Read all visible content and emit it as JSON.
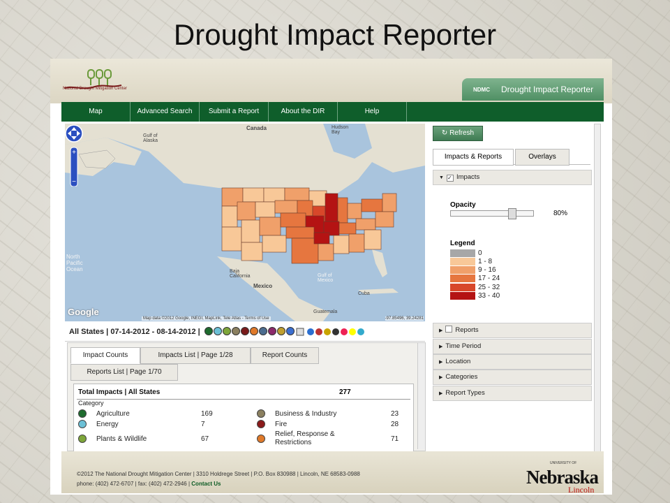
{
  "slide_title": "Drought Impact Reporter",
  "header": {
    "logo_caption": "National Drought Mitigation Center",
    "ndmc": "NDMC",
    "site_title": "Drought Impact Reporter"
  },
  "nav": [
    "Map",
    "Advanced Search",
    "Submit a Report",
    "About the DIR",
    "Help"
  ],
  "map": {
    "labels": {
      "canada": "Canada",
      "hudson": "Hudson Bay",
      "gulf_alaska": "Gulf of Alaska",
      "north_pacific": "North Pacific Ocean",
      "mexico": "Mexico",
      "gulf_mexico": "Gulf of Mexico",
      "cuba": "Cuba",
      "baja": "Baja California",
      "guatemala": "Guatemala"
    },
    "google": "Google",
    "attribution": "Map data ©2012 Google, INEGI, MapLink, Tele Atlas - Terms of Use",
    "coords": "-97.85496, 39.24281"
  },
  "filter": {
    "label": "All States | 07-14-2012 - 08-14-2012 |",
    "dot_colors": [
      "#1e6b2e",
      "#6cc0d6",
      "#7ea63a",
      "#8b8060",
      "#7a1b1b",
      "#e07a2a",
      "#4b6c8f",
      "#8b2a6a",
      "#c0a030",
      "#3b6fd0"
    ]
  },
  "lower_tabs": [
    "Impact Counts",
    "Impacts List | Page 1/28",
    "Report Counts",
    "Reports List | Page 1/70"
  ],
  "impacts": {
    "heading": "Total Impacts | All States",
    "total": "277",
    "category_label": "Category",
    "rows_left": [
      {
        "name": "Agriculture",
        "count": "169",
        "color": "#1e6b2e"
      },
      {
        "name": "Energy",
        "count": "7",
        "color": "#6cc0d6"
      },
      {
        "name": "Plants & Wildlife",
        "count": "67",
        "color": "#7ea63a"
      }
    ],
    "rows_right": [
      {
        "name": "Business & Industry",
        "count": "23",
        "color": "#8b8060"
      },
      {
        "name": "Fire",
        "count": "28",
        "color": "#8b1a1a"
      },
      {
        "name": "Relief, Response & Restrictions",
        "count": "71",
        "color": "#e07a2a"
      }
    ]
  },
  "side": {
    "refresh": "Refresh",
    "tabs": [
      "Impacts & Reports",
      "Overlays"
    ],
    "impacts_label": "Impacts",
    "opacity_label": "Opacity",
    "opacity_value": "80%",
    "opacity_fraction": 0.8,
    "legend_label": "Legend",
    "legend": [
      {
        "label": "0",
        "color": "#a7a7a7"
      },
      {
        "label": "1 - 8",
        "color": "#f8c898"
      },
      {
        "label": "9 - 16",
        "color": "#f0a06a"
      },
      {
        "label": "17 - 24",
        "color": "#e6763f"
      },
      {
        "label": "25 - 32",
        "color": "#d8472a"
      },
      {
        "label": "33 - 40",
        "color": "#b41313"
      }
    ],
    "sections": [
      "Reports",
      "Time Period",
      "Location",
      "Categories",
      "Report Types"
    ]
  },
  "footer": {
    "line1": "©2012 The National Drought Mitigation Center | 3310 Holdrege Street | P.O. Box 830988 | Lincoln, NE 68583-0988",
    "line2": "phone: (402) 472-6707 | fax: (402) 472-2946 |",
    "contact": "Contact Us",
    "univ": "UNIVERSITY OF",
    "nebraska": "Nebraska",
    "lincoln": "Lincoln"
  }
}
